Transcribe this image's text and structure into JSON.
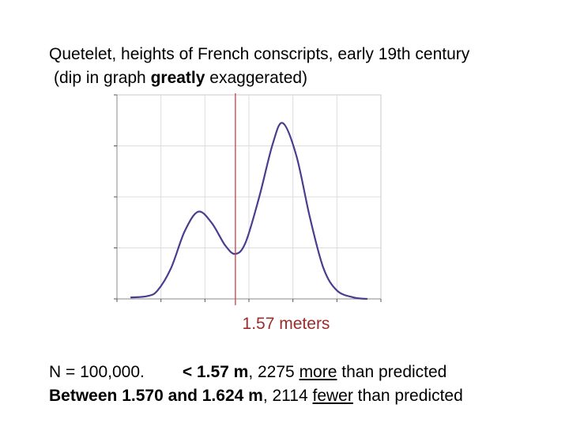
{
  "title": {
    "line1": "Quetelet, heights of French conscripts, early 19th century",
    "line2_prefix": "(dip in graph ",
    "line2_bold": "greatly",
    "line2_suffix": " exaggerated)"
  },
  "marker_label": "1.57 meters",
  "footer": {
    "n_label": "N = 100,000.",
    "line1_bold": "< 1.57 m",
    "line1_mid": ", 2275 ",
    "line1_underlined": "more",
    "line1_end": " than predicted",
    "line2_bold": "Between 1.570 and 1.624 m",
    "line2_mid": ", 2114 ",
    "line2_underlined": "fewer",
    "line2_end": " than predicted"
  },
  "colors": {
    "curve": "#4b3c8f",
    "marker": "#c8404a",
    "grid": "#dcdcdc",
    "plot_border": "#c9c9c9"
  },
  "chart_data": {
    "type": "line",
    "title": "Quetelet, heights of French conscripts, early 19th century",
    "series": [
      {
        "values": [
          [
            0.0,
            0.01
          ],
          [
            0.05,
            0.02
          ],
          [
            0.08,
            0.06
          ],
          [
            0.12,
            0.22
          ],
          [
            0.16,
            0.48
          ],
          [
            0.2,
            0.62
          ],
          [
            0.24,
            0.54
          ],
          [
            0.28,
            0.38
          ],
          [
            0.31,
            0.32
          ],
          [
            0.34,
            0.4
          ],
          [
            0.38,
            0.72
          ],
          [
            0.42,
            1.1
          ],
          [
            0.45,
            1.25
          ],
          [
            0.49,
            1.02
          ],
          [
            0.53,
            0.58
          ],
          [
            0.57,
            0.22
          ],
          [
            0.61,
            0.06
          ],
          [
            0.66,
            0.01
          ],
          [
            0.7,
            0.0
          ]
        ]
      }
    ],
    "marker_x": 0.31,
    "marker_label": "1.57 meters",
    "xlim": [
      -0.04,
      0.74
    ],
    "ylim": [
      0,
      1.45
    ],
    "grid": true
  }
}
